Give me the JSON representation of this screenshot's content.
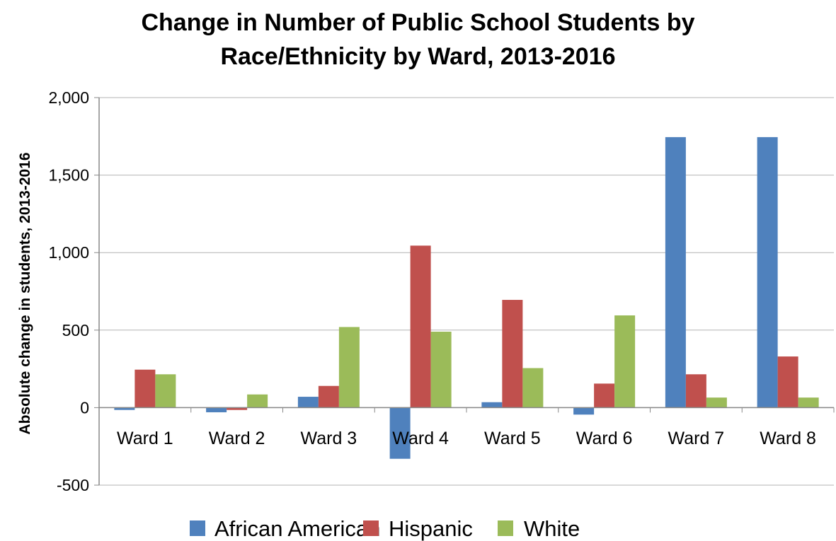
{
  "chart_data": {
    "type": "bar",
    "title_line1": "Change in Number of Public School Students by",
    "title_line2": "Race/Ethnicity by Ward, 2013-2016",
    "xlabel": "",
    "ylabel": "Absolute change in students, 2013-2016",
    "ylim": [
      -500,
      2000
    ],
    "yticks": [
      -500,
      0,
      500,
      1000,
      1500,
      2000
    ],
    "ytick_labels": [
      "-500",
      "0",
      "500",
      "1,000",
      "1,500",
      "2,000"
    ],
    "grid": true,
    "legend_position": "bottom",
    "categories": [
      "Ward 1",
      "Ward 2",
      "Ward 3",
      "Ward 4",
      "Ward 5",
      "Ward 6",
      "Ward 7",
      "Ward 8"
    ],
    "series": [
      {
        "name": "African American",
        "color": "#4f81bd",
        "values": [
          -15,
          -30,
          70,
          -330,
          35,
          -45,
          1745,
          1745
        ]
      },
      {
        "name": "Hispanic",
        "color": "#c0504d",
        "values": [
          245,
          -15,
          140,
          1045,
          695,
          155,
          215,
          330
        ]
      },
      {
        "name": "White",
        "color": "#9bbb59",
        "values": [
          215,
          85,
          520,
          490,
          255,
          595,
          65,
          65
        ]
      }
    ]
  }
}
